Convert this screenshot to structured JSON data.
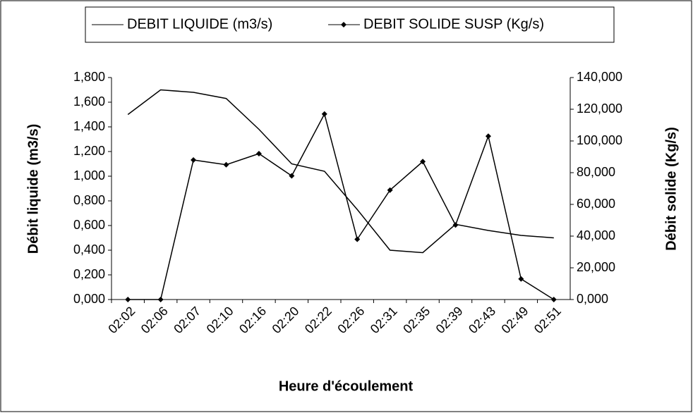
{
  "chart_data": {
    "type": "line",
    "xlabel": "Heure d'écoulement",
    "ylabel": "Débit liquide (m3/s)",
    "y2label": "Débit solide (Kg/s)",
    "categories": [
      "02:02",
      "02:06",
      "02:07",
      "02:10",
      "02:16",
      "02:20",
      "02:22",
      "02:26",
      "02:31",
      "02:35",
      "02:39",
      "02:43",
      "02:49",
      "02:51"
    ],
    "series": [
      {
        "name": "DEBIT LIQUIDE (m3/s)",
        "color": "#000000",
        "marker": false,
        "values": [
          1.5,
          1.7,
          1.68,
          1.63,
          1.38,
          1.1,
          1.04,
          0.73,
          0.4,
          0.38,
          0.61,
          0.56,
          0.52,
          0.5
        ]
      },
      {
        "name": "DEBIT SOLIDE SUSP (Kg/s)",
        "color": "#000000",
        "marker": true,
        "axis": "y2",
        "values": [
          0,
          0,
          88,
          85,
          92,
          78,
          117,
          38,
          69,
          87,
          47,
          103,
          13,
          0
        ]
      }
    ],
    "ylim": [
      0,
      1.8
    ],
    "yticks": [
      {
        "value": 0,
        "label": "0,000"
      },
      {
        "value": 0.2,
        "label": "0,200"
      },
      {
        "value": 0.4,
        "label": "0,400"
      },
      {
        "value": 0.6,
        "label": "0,600"
      },
      {
        "value": 0.8,
        "label": "0,800"
      },
      {
        "value": 1.0,
        "label": "1,000"
      },
      {
        "value": 1.2,
        "label": "1,200"
      },
      {
        "value": 1.4,
        "label": "1,400"
      },
      {
        "value": 1.6,
        "label": "1,600"
      },
      {
        "value": 1.8,
        "label": "1,800"
      }
    ],
    "y2lim": [
      0,
      140
    ],
    "y2ticks": [
      {
        "value": 0,
        "label": "0,000"
      },
      {
        "value": 20,
        "label": "20,000"
      },
      {
        "value": 40,
        "label": "40,000"
      },
      {
        "value": 60,
        "label": "60,000"
      },
      {
        "value": 80,
        "label": "80,000"
      },
      {
        "value": 100,
        "label": "100,000"
      },
      {
        "value": 120,
        "label": "120,000"
      },
      {
        "value": 140,
        "label": "140,000"
      }
    ],
    "legend": "top"
  }
}
